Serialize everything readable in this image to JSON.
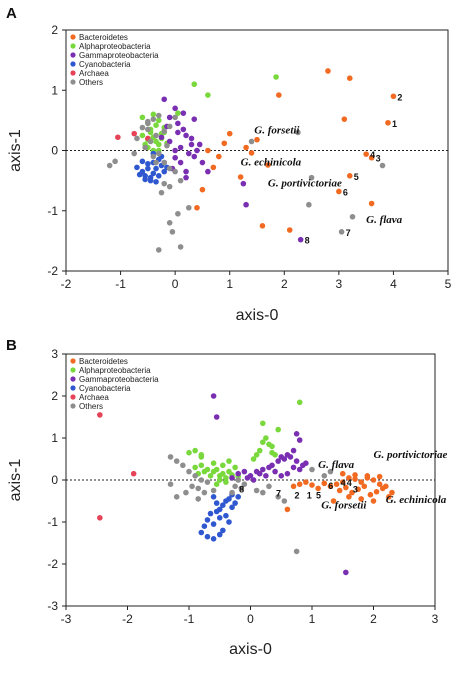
{
  "colors": {
    "Bacteroidetes": "#f26a21",
    "Alphaproteobacteria": "#79d83b",
    "Gammaproteobacteria": "#7a2fb3",
    "Cyanobacteria": "#2f57cf",
    "Archaea": "#e64359",
    "Others": "#8e8e8e"
  },
  "chart_data": [
    {
      "type": "scatter",
      "panel_label": "A",
      "xlabel": "axis-0",
      "ylabel": "axis-1",
      "xlim": [
        -2,
        5
      ],
      "ylim": [
        -2,
        2
      ],
      "xticks": [
        -2,
        -1,
        0,
        1,
        2,
        3,
        4,
        5
      ],
      "yticks": [
        -2,
        -1,
        0,
        1,
        2
      ],
      "zero_line": "dotted horizontal at y=0",
      "legend": [
        "Bacteroidetes",
        "Alphaproteobacteria",
        "Gammaproteobacteria",
        "Cyanobacteria",
        "Archaea",
        "Others"
      ],
      "legend_position": "top-left",
      "series": [
        {
          "name": "Bacteroidetes",
          "x": [
            2.8,
            3.2,
            4.0,
            3.1,
            3.9,
            3.5,
            3.6,
            3.2,
            3.0,
            3.6,
            1.9,
            1.5,
            1.3,
            1.0,
            0.9,
            0.8,
            0.6,
            0.7,
            1.2,
            1.4,
            1.7,
            0.5,
            0.4,
            1.6,
            2.1
          ],
          "y": [
            1.32,
            1.2,
            0.9,
            0.52,
            0.46,
            -0.06,
            -0.12,
            -0.42,
            -0.68,
            -0.88,
            0.92,
            0.18,
            0.05,
            0.28,
            0.12,
            -0.1,
            0.0,
            -0.28,
            -0.44,
            -0.04,
            -0.24,
            -0.65,
            -0.95,
            -1.25,
            -1.32
          ]
        },
        {
          "name": "Alphaproteobacteria",
          "x": [
            -0.6,
            -0.5,
            -0.45,
            -0.4,
            -0.35,
            -0.3,
            -0.25,
            -0.2,
            -0.55,
            -0.5,
            -0.4,
            -0.3,
            -0.2,
            -0.15,
            -0.45,
            -0.35,
            -0.25,
            -0.6,
            -0.5,
            -0.3,
            0.35,
            0.6,
            0.05,
            1.85,
            -0.4,
            -0.3
          ],
          "y": [
            0.55,
            0.45,
            0.3,
            0.22,
            0.15,
            0.1,
            0.2,
            0.3,
            0.1,
            0.05,
            0.0,
            -0.05,
            0.38,
            0.12,
            0.35,
            0.42,
            0.28,
            0.25,
            0.18,
            0.0,
            1.1,
            0.92,
            0.62,
            1.22,
            0.6,
            0.5
          ]
        },
        {
          "name": "Gammaproteobacteria",
          "x": [
            -0.2,
            0.0,
            -0.1,
            0.05,
            0.15,
            0.2,
            0.3,
            0.1,
            -0.1,
            0.0,
            0.25,
            0.35,
            0.1,
            -0.05,
            0.2,
            0.4,
            0.3,
            0.45,
            0.05,
            -0.15,
            -0.25,
            0.15,
            0.35,
            0.5,
            0.6,
            0.0,
            0.2,
            1.25,
            1.3,
            2.3
          ],
          "y": [
            0.85,
            0.7,
            0.55,
            0.45,
            0.35,
            0.25,
            0.1,
            0.05,
            0.15,
            0.0,
            -0.05,
            -0.1,
            -0.2,
            -0.3,
            -0.35,
            0.0,
            0.2,
            0.1,
            0.3,
            0.4,
            0.22,
            0.62,
            0.52,
            -0.2,
            -0.35,
            -0.12,
            -0.45,
            -0.55,
            -0.9,
            -1.48
          ]
        },
        {
          "name": "Cyanobacteria",
          "x": [
            -0.7,
            -0.6,
            -0.55,
            -0.5,
            -0.45,
            -0.4,
            -0.35,
            -0.3,
            -0.25,
            -0.2,
            -0.6,
            -0.5,
            -0.4,
            -0.3,
            -0.2,
            -0.45,
            -0.35,
            -0.55,
            -0.65,
            -0.15,
            -0.25,
            -0.4
          ],
          "y": [
            -0.28,
            -0.35,
            -0.42,
            -0.3,
            -0.45,
            -0.38,
            -0.3,
            -0.42,
            -0.25,
            -0.35,
            -0.18,
            -0.22,
            -0.2,
            -0.15,
            -0.2,
            -0.5,
            -0.52,
            -0.48,
            -0.4,
            -0.28,
            -0.1,
            -0.05
          ]
        },
        {
          "name": "Archaea",
          "x": [
            -1.05,
            -0.75,
            -0.5
          ],
          "y": [
            0.22,
            0.28,
            0.2
          ]
        },
        {
          "name": "Others",
          "x": [
            -0.3,
            -0.4,
            -0.5,
            -0.6,
            -0.2,
            -0.35,
            -0.45,
            -0.55,
            -0.15,
            -0.3,
            -0.4,
            -0.2,
            -0.1,
            -0.5,
            -1.2,
            -1.1,
            -0.35,
            0.0,
            0.1,
            -0.2,
            -0.25,
            -0.1,
            -0.7,
            -0.75,
            -0.5,
            -0.1,
            0.0,
            3.8,
            2.5,
            2.45,
            3.05,
            3.25,
            1.4,
            0.25,
            0.05,
            0.1,
            -0.1,
            -0.05,
            -0.3,
            2.25
          ],
          "y": [
            0.58,
            0.52,
            0.45,
            0.38,
            0.32,
            0.25,
            0.15,
            0.05,
            0.08,
            -0.05,
            -0.1,
            -0.2,
            -0.3,
            0.48,
            -0.25,
            -0.18,
            -0.2,
            -0.35,
            -0.5,
            -0.55,
            -0.7,
            -0.6,
            0.2,
            -0.05,
            0.35,
            0.4,
            0.55,
            -0.25,
            -0.45,
            -0.9,
            -1.35,
            -1.1,
            0.15,
            -0.95,
            -1.05,
            -1.6,
            -1.2,
            -1.35,
            -1.65,
            0.3
          ]
        }
      ],
      "annotations": [
        {
          "text": "G. forsetii",
          "x": 1.45,
          "y": 0.28,
          "kind": "species"
        },
        {
          "text": "G. echinicola",
          "x": 1.2,
          "y": -0.25,
          "kind": "species"
        },
        {
          "text": "G. portivictoriae",
          "x": 1.7,
          "y": -0.6,
          "kind": "species"
        },
        {
          "text": "G. flava",
          "x": 3.5,
          "y": -1.2,
          "kind": "species"
        },
        {
          "text": "2",
          "x": 4.0,
          "y": 0.9,
          "kind": "number"
        },
        {
          "text": "1",
          "x": 3.9,
          "y": 0.46,
          "kind": "number"
        },
        {
          "text": "4",
          "x": 3.5,
          "y": -0.06,
          "kind": "number"
        },
        {
          "text": "3",
          "x": 3.6,
          "y": -0.12,
          "kind": "number"
        },
        {
          "text": "5",
          "x": 3.2,
          "y": -0.42,
          "kind": "number"
        },
        {
          "text": "6",
          "x": 3.0,
          "y": -0.68,
          "kind": "number"
        },
        {
          "text": "8",
          "x": 2.3,
          "y": -1.48,
          "kind": "number"
        },
        {
          "text": "7",
          "x": 3.05,
          "y": -1.35,
          "kind": "number"
        }
      ]
    },
    {
      "type": "scatter",
      "panel_label": "B",
      "xlabel": "axis-0",
      "ylabel": "axis-1",
      "xlim": [
        -3,
        3
      ],
      "ylim": [
        -3,
        3
      ],
      "xticks": [
        -3,
        -2,
        -1,
        0,
        1,
        2,
        3
      ],
      "yticks": [
        -3,
        -2,
        -1,
        0,
        1,
        2,
        3
      ],
      "zero_line": "dotted horizontal at y=0",
      "legend": [
        "Bacteroidetes",
        "Alphaproteobacteria",
        "Gammaproteobacteria",
        "Cyanobacteria",
        "Archaea",
        "Others"
      ],
      "legend_position": "top-left",
      "series": [
        {
          "name": "Bacteroidetes",
          "x": [
            0.7,
            0.8,
            0.9,
            1.0,
            1.1,
            1.2,
            1.3,
            1.4,
            1.5,
            1.6,
            1.7,
            1.8,
            1.9,
            2.0,
            2.1,
            2.2,
            1.45,
            1.55,
            1.65,
            1.75,
            1.85,
            1.95,
            2.05,
            2.15,
            2.25,
            1.5,
            1.7,
            1.9,
            2.1,
            1.6,
            1.8,
            2.0,
            0.6,
            2.3,
            1.35
          ],
          "y": [
            -0.15,
            -0.1,
            -0.05,
            -0.12,
            -0.2,
            -0.08,
            -0.15,
            -0.1,
            -0.05,
            0.05,
            0.02,
            -0.05,
            0.05,
            0.0,
            -0.1,
            -0.15,
            -0.25,
            -0.18,
            -0.3,
            -0.22,
            -0.15,
            -0.35,
            -0.28,
            -0.2,
            -0.4,
            0.15,
            0.12,
            0.1,
            0.08,
            -0.4,
            -0.45,
            -0.5,
            -0.7,
            -0.3,
            -0.5
          ]
        },
        {
          "name": "Alphaproteobacteria",
          "x": [
            -0.6,
            -0.55,
            -0.5,
            -0.45,
            -0.4,
            -0.35,
            -0.3,
            -0.25,
            -0.2,
            -0.65,
            -0.7,
            -0.75,
            -0.8,
            -0.85,
            -0.9,
            -0.5,
            -0.4,
            -0.3,
            -0.55,
            -0.45,
            -0.6,
            -0.35,
            -0.8,
            -1.0,
            0.1,
            0.15,
            0.2,
            0.25,
            0.3,
            0.35,
            0.4,
            0.45,
            0.05,
            0.2,
            0.35,
            0.8,
            -0.8,
            -0.9
          ],
          "y": [
            0.2,
            0.25,
            0.1,
            0.15,
            0.05,
            0.2,
            0.12,
            0.3,
            0.08,
            0.1,
            0.25,
            0.2,
            0.35,
            0.15,
            0.3,
            0.0,
            -0.05,
            0.05,
            -0.1,
            0.35,
            0.4,
            0.45,
            0.55,
            0.65,
            0.6,
            0.7,
            0.9,
            1.0,
            0.85,
            0.8,
            0.6,
            1.2,
            0.5,
            1.35,
            0.65,
            1.85,
            0.6,
            0.7
          ]
        },
        {
          "name": "Gammaproteobacteria",
          "x": [
            0.0,
            0.1,
            0.2,
            0.3,
            0.4,
            0.5,
            0.6,
            0.7,
            0.8,
            0.9,
            0.35,
            0.45,
            0.55,
            0.65,
            0.75,
            0.85,
            -0.1,
            -0.05,
            0.05,
            0.15,
            0.25,
            -0.2,
            -0.3,
            0.5,
            0.6,
            0.7,
            0.8,
            0.75,
            -0.6,
            -0.55,
            1.55
          ],
          "y": [
            0.1,
            0.2,
            0.25,
            0.3,
            0.2,
            0.1,
            0.15,
            0.3,
            0.25,
            0.4,
            0.35,
            0.45,
            0.5,
            0.55,
            0.45,
            0.35,
            0.2,
            0.05,
            0.0,
            0.15,
            0.1,
            0.15,
            0.05,
            0.55,
            0.6,
            0.7,
            0.95,
            1.1,
            2.0,
            1.5,
            -2.2
          ]
        },
        {
          "name": "Cyanobacteria",
          "x": [
            -0.6,
            -0.55,
            -0.5,
            -0.45,
            -0.4,
            -0.35,
            -0.3,
            -0.25,
            -0.2,
            -0.65,
            -0.7,
            -0.75,
            -0.8,
            -0.6,
            -0.5,
            -0.4,
            -0.3,
            -0.55,
            -0.45,
            -0.35,
            -0.7,
            -0.6,
            -0.5
          ],
          "y": [
            -0.4,
            -0.55,
            -0.7,
            -0.6,
            -0.5,
            -0.45,
            -0.35,
            -0.55,
            -0.4,
            -0.8,
            -0.95,
            -1.1,
            -1.25,
            -1.05,
            -0.9,
            -0.85,
            -0.65,
            -0.75,
            -1.2,
            -1.0,
            -1.35,
            -1.4,
            -1.3
          ]
        },
        {
          "name": "Archaea",
          "x": [
            -2.45,
            -1.9,
            -2.45
          ],
          "y": [
            1.55,
            0.15,
            -0.9
          ]
        },
        {
          "name": "Others",
          "x": [
            -1.3,
            -1.2,
            -1.1,
            -1.0,
            -0.9,
            -0.8,
            -0.7,
            -0.85,
            -1.05,
            -0.95,
            -0.75,
            -0.6,
            -0.3,
            -0.25,
            -0.2,
            -0.15,
            -0.1,
            0.1,
            0.2,
            0.3,
            0.45,
            0.55,
            1.2,
            1.3,
            1.0,
            0.75,
            -0.85,
            -1.3,
            -1.2
          ],
          "y": [
            0.55,
            0.45,
            0.35,
            0.2,
            0.1,
            0.0,
            -0.05,
            -0.2,
            -0.3,
            -0.15,
            -0.3,
            -0.25,
            -0.3,
            -0.15,
            0.0,
            -0.2,
            -0.1,
            -0.25,
            -0.3,
            -0.15,
            -0.4,
            -0.5,
            0.1,
            0.2,
            0.25,
            -1.7,
            -0.45,
            -0.1,
            -0.4
          ]
        }
      ],
      "annotations": [
        {
          "text": "G. portivictoriae",
          "x": 2.0,
          "y": 0.52,
          "kind": "species"
        },
        {
          "text": "G. flava",
          "x": 1.1,
          "y": 0.28,
          "kind": "species"
        },
        {
          "text": "G. forsetii",
          "x": 1.15,
          "y": -0.68,
          "kind": "species"
        },
        {
          "text": "G. echinicola",
          "x": 2.2,
          "y": -0.55,
          "kind": "species"
        },
        {
          "text": "8",
          "x": -0.25,
          "y": -0.2,
          "kind": "number"
        },
        {
          "text": "7",
          "x": 0.35,
          "y": -0.3,
          "kind": "number"
        },
        {
          "text": "2",
          "x": 0.65,
          "y": -0.35,
          "kind": "number"
        },
        {
          "text": "1",
          "x": 0.85,
          "y": -0.35,
          "kind": "number"
        },
        {
          "text": "5",
          "x": 1.0,
          "y": -0.35,
          "kind": "number"
        },
        {
          "text": "6",
          "x": 1.2,
          "y": -0.12,
          "kind": "number"
        },
        {
          "text": "4",
          "x": 1.4,
          "y": -0.05,
          "kind": "number"
        },
        {
          "text": "4",
          "x": 1.5,
          "y": -0.05,
          "kind": "number"
        },
        {
          "text": "3",
          "x": 1.6,
          "y": -0.2,
          "kind": "number"
        }
      ]
    }
  ]
}
